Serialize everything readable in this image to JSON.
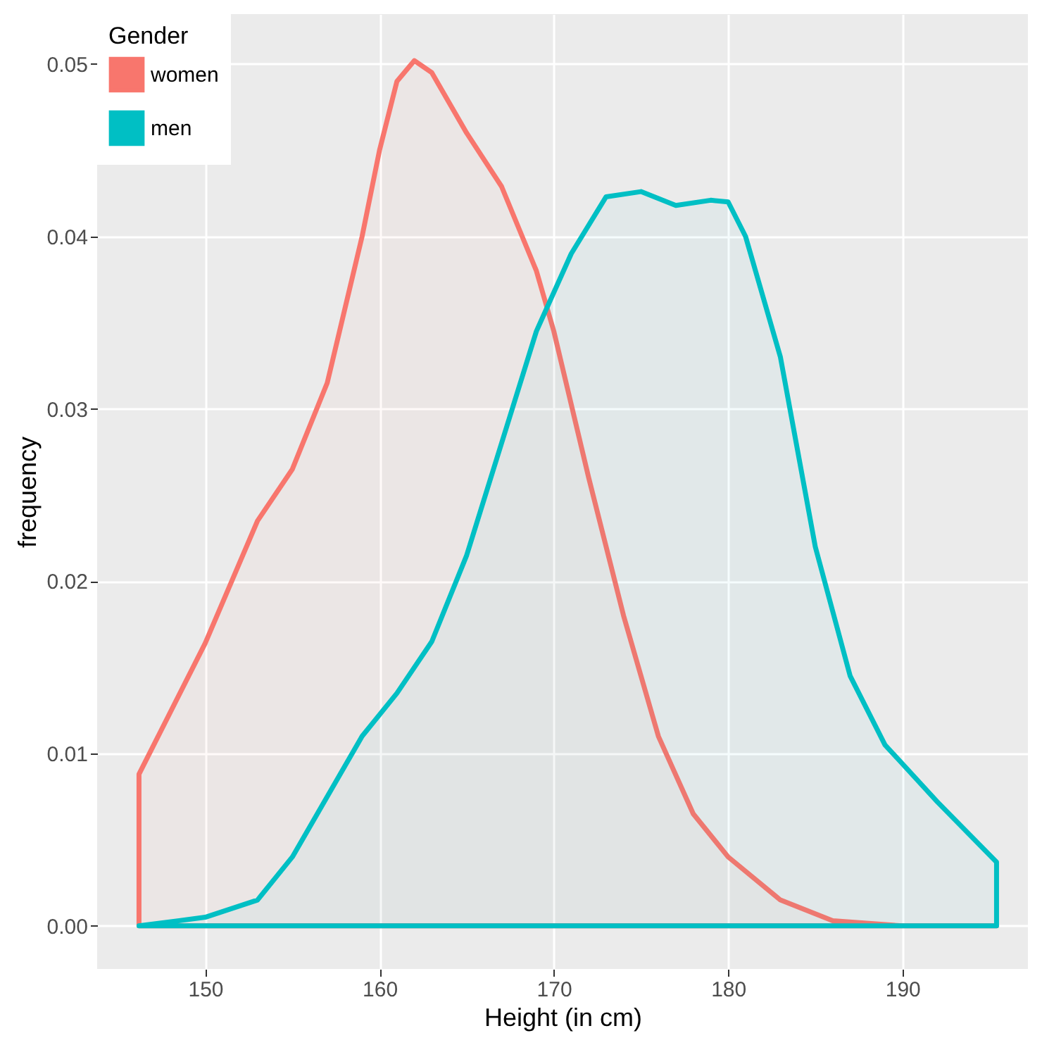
{
  "chart_data": {
    "type": "area",
    "xlabel": "Height (in cm)",
    "ylabel": "frequency",
    "legend_title": "Gender",
    "legend": "top left",
    "grid": true,
    "line_style": "solid",
    "xlim": [
      143.8,
      197.2
    ],
    "ylim": [
      -0.0025,
      0.0529
    ],
    "xticks": [
      150,
      160,
      170,
      180,
      190
    ],
    "yticks": [
      {
        "value": 0,
        "label": "0.00"
      },
      0.01,
      0.02,
      0.03,
      0.04,
      0.05
    ],
    "series": [
      {
        "name": "women",
        "color": "#f8766d",
        "x": [
          146.2,
          150,
          153,
          155,
          157,
          159,
          160,
          161,
          162,
          163,
          165,
          167,
          169,
          170,
          172,
          174,
          176,
          178,
          180,
          183,
          186,
          190,
          195.4
        ],
        "values": [
          0.0088,
          0.0164,
          0.0235,
          0.0265,
          0.0315,
          0.04,
          0.045,
          0.049,
          0.0502,
          0.0495,
          0.046,
          0.0429,
          0.038,
          0.0345,
          0.026,
          0.018,
          0.011,
          0.0065,
          0.004,
          0.0015,
          0.0003,
          0,
          0
        ]
      },
      {
        "name": "men",
        "color": "#00bfc4",
        "x": [
          146.2,
          150,
          153,
          155,
          157,
          159,
          161,
          163,
          165,
          167,
          169,
          171,
          173,
          175,
          177,
          179,
          180,
          181,
          183,
          185,
          187,
          189,
          192,
          195.4
        ],
        "values": [
          0,
          0.0005,
          0.0015,
          0.004,
          0.0075,
          0.011,
          0.0135,
          0.0165,
          0.0215,
          0.028,
          0.0345,
          0.039,
          0.0423,
          0.0426,
          0.0418,
          0.0421,
          0.042,
          0.04,
          0.033,
          0.022,
          0.0145,
          0.0105,
          0.0072,
          0.0037
        ]
      }
    ]
  }
}
